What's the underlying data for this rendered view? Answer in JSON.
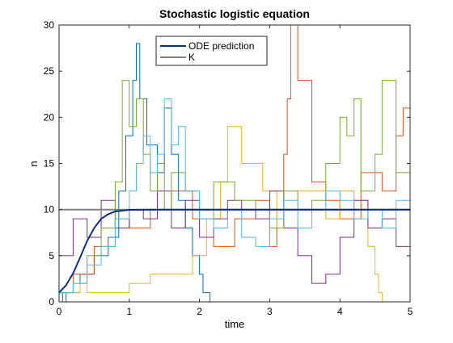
{
  "chart_data": {
    "type": "line",
    "title": "Stochastic logistic equation",
    "xlabel": "time",
    "ylabel": "n",
    "xlim": [
      0,
      5
    ],
    "ylim": [
      0,
      30
    ],
    "xticks": [
      0,
      1,
      2,
      3,
      4,
      5
    ],
    "yticks": [
      0,
      5,
      10,
      15,
      20,
      25,
      30
    ],
    "grid": false,
    "legend_position": "top-center",
    "colors": {
      "ode": "#0b2f7a",
      "k": "#808080",
      "trajectories": [
        "#0072bd",
        "#d95319",
        "#edb120",
        "#7e2f8e",
        "#77ac30",
        "#4dbeee"
      ]
    },
    "series": [
      {
        "name": "ODE prediction",
        "x": [
          0,
          0.1,
          0.2,
          0.3,
          0.4,
          0.5,
          0.6,
          0.7,
          0.8,
          1.0,
          1.5,
          2.0,
          3.0,
          4.0,
          5.0
        ],
        "y": [
          1.0,
          1.8,
          3.1,
          4.8,
          6.6,
          8.0,
          9.0,
          9.5,
          9.8,
          9.97,
          10.0,
          10.0,
          10.0,
          10.0,
          10.0
        ]
      },
      {
        "name": "K",
        "x": [
          0,
          5
        ],
        "y": [
          10,
          10
        ]
      }
    ],
    "stochastic_trajectories": [
      {
        "x": [
          0,
          0.05,
          0.1,
          0.3,
          0.5,
          0.7,
          0.85,
          0.95,
          1.05,
          1.1,
          1.15,
          1.25,
          1.4,
          1.5,
          1.6,
          1.7,
          1.8,
          1.9,
          2.0,
          2.05,
          2.1,
          2.15,
          5.0
        ],
        "y": [
          1,
          0,
          1,
          3,
          5,
          7,
          12,
          18,
          24,
          28,
          22,
          17,
          14,
          21,
          16,
          11,
          8,
          5,
          3,
          1,
          1,
          0,
          0
        ]
      },
      {
        "x": [
          0,
          0.2,
          0.5,
          0.8,
          1.0,
          1.3,
          1.6,
          1.9,
          2.2,
          2.5,
          2.8,
          3.0,
          3.1,
          3.2,
          3.25,
          3.3,
          3.4,
          3.6,
          3.8,
          4.0,
          4.3,
          4.6,
          4.8,
          4.9,
          5.0
        ],
        "y": [
          1,
          3,
          6,
          9,
          8,
          10,
          12,
          9,
          6,
          9,
          11,
          6,
          10,
          16,
          22,
          30,
          24,
          13,
          11,
          9,
          14,
          12,
          18,
          21,
          12
        ]
      },
      {
        "x": [
          0,
          0.2,
          0.3,
          0.4,
          0.6,
          1.0,
          1.3,
          1.6,
          1.9,
          2.1,
          2.3,
          2.4,
          2.6,
          2.9,
          3.1,
          3.4,
          3.6,
          3.8,
          4.0,
          4.2,
          4.4,
          4.5,
          4.55,
          4.6,
          5.0
        ],
        "y": [
          1,
          1,
          2,
          1,
          1,
          2,
          3,
          3,
          5,
          9,
          13,
          19,
          15,
          12,
          8,
          12,
          12,
          9,
          12,
          11,
          6,
          3,
          1,
          0,
          0
        ]
      },
      {
        "x": [
          0,
          0.2,
          0.4,
          0.6,
          0.8,
          1.0,
          1.2,
          1.4,
          1.6,
          1.8,
          2.0,
          2.2,
          2.4,
          2.6,
          2.8,
          3.0,
          3.2,
          3.4,
          3.6,
          3.8,
          4.0,
          4.2,
          4.4,
          4.6,
          4.8,
          5.0
        ],
        "y": [
          5,
          9,
          7,
          11,
          8,
          10,
          9,
          12,
          8,
          11,
          7,
          9,
          11,
          10,
          9,
          12,
          8,
          5,
          2,
          3,
          7,
          11,
          8,
          9,
          6,
          4
        ]
      },
      {
        "x": [
          0,
          0.2,
          0.4,
          0.6,
          0.8,
          0.9,
          1.0,
          1.1,
          1.2,
          1.3,
          1.4,
          1.5,
          1.6,
          1.8,
          2.0,
          2.2,
          2.5,
          2.8,
          3.0,
          3.2,
          3.4,
          3.6,
          3.8,
          4.0,
          4.1,
          4.2,
          4.3,
          4.5,
          4.6,
          4.8,
          5.0
        ],
        "y": [
          1,
          2,
          5,
          8,
          13,
          24,
          19,
          22,
          16,
          12,
          15,
          10,
          14,
          12,
          9,
          13,
          11,
          10,
          8,
          12,
          10,
          11,
          15,
          20,
          18,
          22,
          12,
          16,
          24,
          14,
          7
        ]
      },
      {
        "x": [
          0,
          0.2,
          0.4,
          0.6,
          0.8,
          1.0,
          1.1,
          1.2,
          1.3,
          1.4,
          1.5,
          1.6,
          1.7,
          1.8,
          2.0,
          2.2,
          2.4,
          2.6,
          2.8,
          3.0,
          3.2,
          3.4,
          3.6,
          3.8,
          4.0,
          4.2,
          4.4,
          4.6,
          4.8,
          5.0
        ],
        "y": [
          1,
          2,
          4,
          6,
          9,
          12,
          15,
          18,
          14,
          16,
          22,
          17,
          19,
          12,
          9,
          8,
          10,
          7,
          6,
          9,
          11,
          8,
          10,
          12,
          11,
          9,
          10,
          8,
          11,
          9
        ]
      }
    ]
  }
}
